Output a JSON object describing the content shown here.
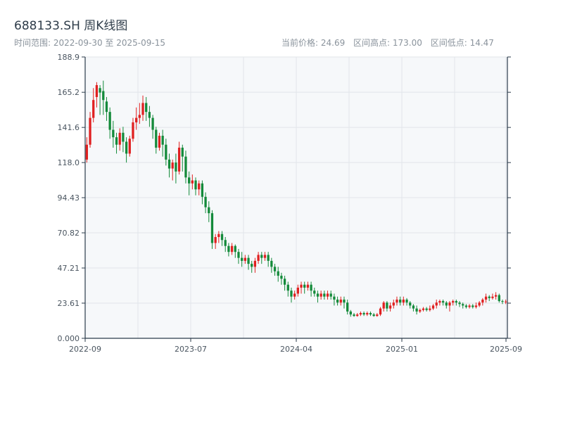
{
  "header": {
    "title": "688133.SH 周K线图",
    "range_label": "时间范围: 2022-09-30 至 2025-09-15",
    "current_price_label": "当前价格: 24.69",
    "high_label": "区间高点: 173.00",
    "low_label": "区间低点: 14.47"
  },
  "colors": {
    "up": "#e02020",
    "down": "#138a3a",
    "plot_bg": "#f6f8fa",
    "grid": "#e1e5ea",
    "axis": "#2a3a4a"
  },
  "chart_data": {
    "type": "candlestick",
    "title": "688133.SH 周K线图",
    "y_ticks": [
      0.0,
      23.61,
      47.21,
      70.82,
      94.43,
      118.0,
      141.6,
      165.2,
      188.9
    ],
    "y_tick_labels": [
      "0.000",
      "23.61",
      "47.21",
      "70.82",
      "94.43",
      "118.0",
      "141.6",
      "165.2",
      "188.9"
    ],
    "ylim": [
      0,
      188.9
    ],
    "x_tick_labels": [
      "2022-09",
      "2023-07",
      "2024-04",
      "2025-01",
      "2025-09"
    ],
    "grid": true,
    "candles": [
      [
        120,
        130,
        118,
        135
      ],
      [
        130,
        148,
        128,
        152
      ],
      [
        148,
        160,
        145,
        168
      ],
      [
        162,
        170,
        155,
        172
      ],
      [
        168,
        165,
        150,
        170
      ],
      [
        166,
        160,
        150,
        173
      ],
      [
        159,
        152,
        146,
        162
      ],
      [
        152,
        140,
        134,
        155
      ],
      [
        140,
        135,
        128,
        146
      ],
      [
        135,
        130,
        124,
        138
      ],
      [
        130,
        138,
        126,
        141
      ],
      [
        138,
        132,
        125,
        142
      ],
      [
        132,
        124,
        118,
        135
      ],
      [
        124,
        134,
        122,
        136
      ],
      [
        134,
        145,
        132,
        148
      ],
      [
        145,
        148,
        140,
        155
      ],
      [
        148,
        150,
        144,
        158
      ],
      [
        150,
        158,
        146,
        163
      ],
      [
        158,
        152,
        146,
        162
      ],
      [
        152,
        148,
        142,
        156
      ],
      [
        148,
        140,
        134,
        150
      ],
      [
        140,
        128,
        124,
        142
      ],
      [
        128,
        136,
        126,
        138
      ],
      [
        136,
        130,
        122,
        140
      ],
      [
        130,
        120,
        116,
        134
      ],
      [
        120,
        114,
        108,
        124
      ],
      [
        114,
        118,
        106,
        120
      ],
      [
        118,
        112,
        104,
        124
      ],
      [
        112,
        128,
        110,
        132
      ],
      [
        128,
        122,
        112,
        130
      ],
      [
        122,
        108,
        104,
        126
      ],
      [
        108,
        104,
        96,
        112
      ],
      [
        104,
        106,
        100,
        110
      ],
      [
        106,
        100,
        96,
        108
      ],
      [
        100,
        104,
        96,
        106
      ],
      [
        104,
        95,
        90,
        106
      ],
      [
        95,
        88,
        84,
        98
      ],
      [
        88,
        84,
        78,
        92
      ],
      [
        84,
        64,
        60,
        86
      ],
      [
        64,
        68,
        60,
        70
      ],
      [
        68,
        70,
        64,
        72
      ],
      [
        70,
        66,
        62,
        72
      ],
      [
        66,
        62,
        58,
        68
      ],
      [
        62,
        58,
        55,
        64
      ],
      [
        58,
        62,
        56,
        64
      ],
      [
        62,
        58,
        54,
        63
      ],
      [
        58,
        54,
        50,
        60
      ],
      [
        54,
        52,
        48,
        58
      ],
      [
        52,
        54,
        50,
        56
      ],
      [
        54,
        50,
        46,
        56
      ],
      [
        50,
        48,
        44,
        52
      ],
      [
        48,
        52,
        44,
        54
      ],
      [
        52,
        56,
        50,
        58
      ],
      [
        56,
        54,
        50,
        58
      ],
      [
        54,
        56,
        52,
        58
      ],
      [
        56,
        52,
        48,
        58
      ],
      [
        52,
        48,
        44,
        54
      ],
      [
        48,
        45,
        42,
        50
      ],
      [
        45,
        42,
        38,
        48
      ],
      [
        42,
        40,
        36,
        44
      ],
      [
        40,
        36,
        32,
        42
      ],
      [
        36,
        32,
        28,
        38
      ],
      [
        32,
        28,
        24,
        34
      ],
      [
        28,
        30,
        26,
        32
      ],
      [
        30,
        34,
        28,
        36
      ],
      [
        34,
        36,
        30,
        38
      ],
      [
        36,
        34,
        30,
        38
      ],
      [
        34,
        36,
        32,
        38
      ],
      [
        36,
        32,
        28,
        38
      ],
      [
        32,
        30,
        28,
        34
      ],
      [
        30,
        28,
        24,
        32
      ],
      [
        28,
        30,
        26,
        32
      ],
      [
        30,
        28,
        26,
        32
      ],
      [
        28,
        30,
        26,
        32
      ],
      [
        30,
        28,
        26,
        32
      ],
      [
        28,
        26,
        22,
        30
      ],
      [
        26,
        24,
        22,
        28
      ],
      [
        24,
        26,
        22,
        28
      ],
      [
        26,
        24,
        20,
        28
      ],
      [
        24,
        18,
        16,
        26
      ],
      [
        18,
        16,
        14.5,
        19
      ],
      [
        16,
        15,
        14.47,
        17
      ],
      [
        15,
        16,
        14.5,
        17
      ],
      [
        16,
        17,
        15,
        18
      ],
      [
        17,
        16,
        15,
        18
      ],
      [
        16,
        17,
        15,
        18
      ],
      [
        17,
        16,
        15,
        18
      ],
      [
        16,
        15,
        14.5,
        17
      ],
      [
        15,
        16,
        14.5,
        17
      ],
      [
        16,
        20,
        15,
        21
      ],
      [
        20,
        24,
        18,
        25
      ],
      [
        24,
        20,
        18,
        25
      ],
      [
        20,
        22,
        18,
        24
      ],
      [
        22,
        24,
        20,
        26
      ],
      [
        24,
        26,
        22,
        28
      ],
      [
        26,
        24,
        22,
        28
      ],
      [
        24,
        26,
        22,
        28
      ],
      [
        26,
        24,
        22,
        27
      ],
      [
        24,
        22,
        20,
        25
      ],
      [
        22,
        20,
        18,
        23
      ],
      [
        20,
        18,
        16,
        22
      ],
      [
        18,
        19,
        17,
        20
      ],
      [
        19,
        20,
        18,
        21
      ],
      [
        20,
        19,
        18,
        21
      ],
      [
        19,
        20,
        18,
        22
      ],
      [
        20,
        22,
        19,
        23
      ],
      [
        22,
        24,
        20,
        26
      ],
      [
        24,
        25,
        22,
        26
      ],
      [
        25,
        24,
        22,
        26
      ],
      [
        24,
        22,
        20,
        25
      ],
      [
        22,
        24,
        18,
        25
      ],
      [
        24,
        25,
        22,
        26
      ],
      [
        25,
        24,
        22,
        26
      ],
      [
        24,
        23,
        21,
        25
      ],
      [
        23,
        22,
        20,
        24
      ],
      [
        22,
        21,
        20,
        23
      ],
      [
        21,
        22,
        20,
        23
      ],
      [
        22,
        21,
        20,
        23
      ],
      [
        21,
        22,
        20,
        24
      ],
      [
        22,
        24,
        21,
        25
      ],
      [
        24,
        26,
        22,
        27
      ],
      [
        26,
        28,
        24,
        30
      ],
      [
        28,
        27,
        25,
        29
      ],
      [
        27,
        28,
        26,
        30
      ],
      [
        28,
        29,
        26,
        31
      ],
      [
        29,
        25,
        24,
        30
      ],
      [
        25,
        24.5,
        23,
        26
      ],
      [
        24.5,
        24.69,
        23,
        26
      ]
    ]
  }
}
